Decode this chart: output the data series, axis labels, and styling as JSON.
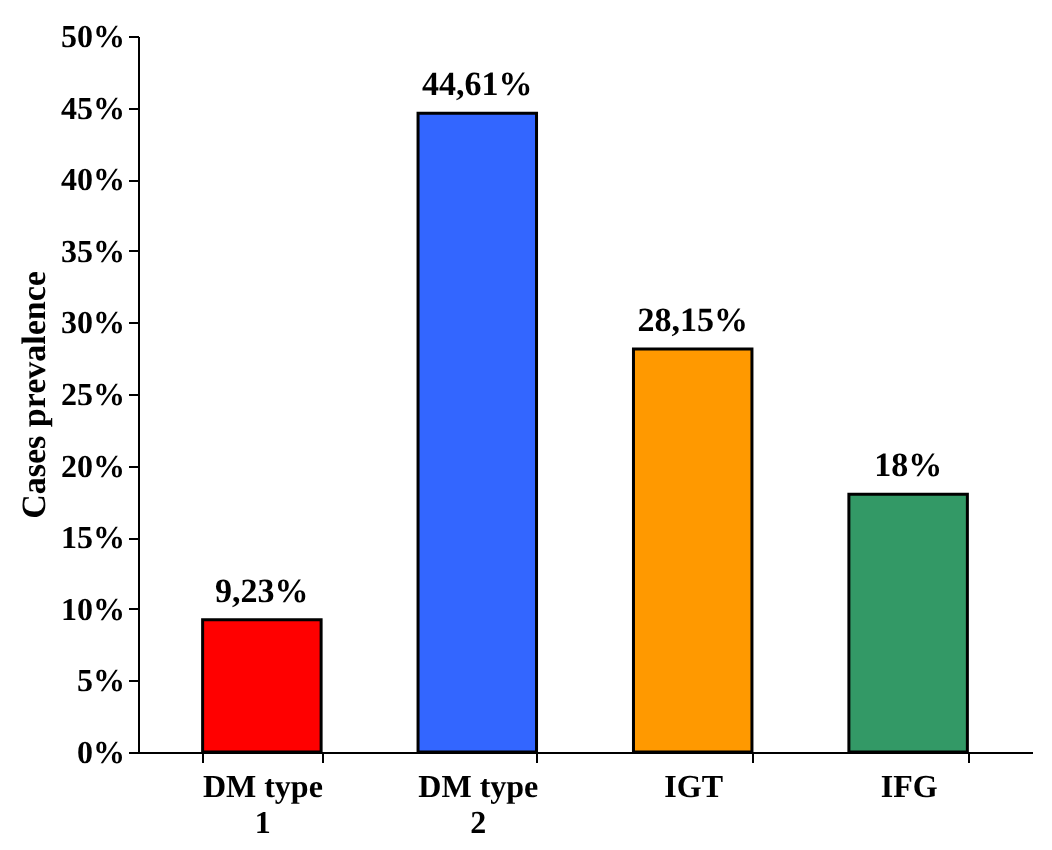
{
  "chart_data": {
    "type": "bar",
    "ylabel": "Cases prevalence",
    "categories": [
      "DM type 1",
      "DM type 2",
      "IGT",
      "IFG"
    ],
    "values": [
      9.23,
      44.61,
      28.15,
      18
    ],
    "colors": [
      "#ff0000",
      "#3366ff",
      "#ff9900",
      "#339966"
    ],
    "value_labels": [
      "9,23%",
      "44,61%",
      "28,15%",
      "18%"
    ],
    "ylim": [
      0,
      50
    ],
    "yticks": [
      {
        "value": 0,
        "label": "0%"
      },
      {
        "value": 5,
        "label": "5%"
      },
      {
        "value": 10,
        "label": "10%"
      },
      {
        "value": 15,
        "label": "15%"
      },
      {
        "value": 20,
        "label": "20%"
      },
      {
        "value": 25,
        "label": "25%"
      },
      {
        "value": 30,
        "label": "30%"
      },
      {
        "value": 35,
        "label": "35%"
      },
      {
        "value": 40,
        "label": "40%"
      },
      {
        "value": 45,
        "label": "45%"
      },
      {
        "value": 50,
        "label": "50%"
      }
    ],
    "grid": false
  }
}
